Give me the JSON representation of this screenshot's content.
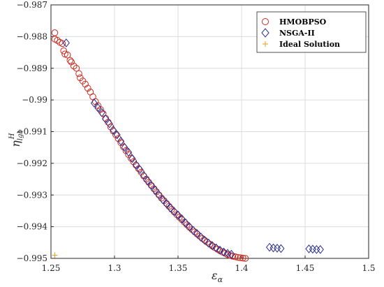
{
  "chart_data": {
    "type": "scatter",
    "xlabel": "ε",
    "xlabel_sub": "α",
    "ylabel": "η",
    "ylabel_sup": "H",
    "ylabel_sub": "lgb",
    "xlim": [
      1.25,
      1.5
    ],
    "ylim": [
      -0.995,
      -0.987
    ],
    "xticks": [
      1.25,
      1.3,
      1.35,
      1.4,
      1.45,
      1.5
    ],
    "xtick_labels": [
      "1.25",
      "1.3",
      "1.35",
      "1.4",
      "1.45",
      "1.5"
    ],
    "yticks": [
      -0.987,
      -0.988,
      -0.989,
      -0.99,
      -0.991,
      -0.992,
      -0.993,
      -0.994,
      -0.995
    ],
    "ytick_labels": [
      "−0.987",
      "−0.988",
      "−0.989",
      "−0.99",
      "−0.991",
      "−0.992",
      "−0.993",
      "−0.994",
      "−0.995"
    ],
    "grid": true,
    "legend_position": "top-right",
    "series": [
      {
        "name": "HMOBPSO",
        "marker": "circle",
        "color": "#cc2a1f",
        "points": [
          [
            1.253,
            -0.98788
          ],
          [
            1.253,
            -0.98808
          ],
          [
            1.255,
            -0.98812
          ],
          [
            1.257,
            -0.98818
          ],
          [
            1.259,
            -0.98822
          ],
          [
            1.26,
            -0.98845
          ],
          [
            1.261,
            -0.98855
          ],
          [
            1.263,
            -0.98858
          ],
          [
            1.265,
            -0.98875
          ],
          [
            1.266,
            -0.9888
          ],
          [
            1.268,
            -0.98893
          ],
          [
            1.27,
            -0.989
          ],
          [
            1.272,
            -0.98917
          ],
          [
            1.273,
            -0.9893
          ],
          [
            1.275,
            -0.9894
          ],
          [
            1.277,
            -0.9895
          ],
          [
            1.279,
            -0.98963
          ],
          [
            1.281,
            -0.98975
          ],
          [
            1.283,
            -0.9899
          ],
          [
            1.285,
            -0.99005
          ],
          [
            1.287,
            -0.99018
          ],
          [
            1.289,
            -0.9903
          ],
          [
            1.291,
            -0.99043
          ],
          [
            1.293,
            -0.99058
          ],
          [
            1.295,
            -0.9907
          ],
          [
            1.297,
            -0.99085
          ],
          [
            1.299,
            -0.99098
          ],
          [
            1.301,
            -0.9911
          ],
          [
            1.303,
            -0.99122
          ],
          [
            1.305,
            -0.99135
          ],
          [
            1.307,
            -0.99148
          ],
          [
            1.309,
            -0.9916
          ],
          [
            1.311,
            -0.99172
          ],
          [
            1.313,
            -0.99184
          ],
          [
            1.315,
            -0.99195
          ],
          [
            1.317,
            -0.99206
          ],
          [
            1.319,
            -0.99217
          ],
          [
            1.321,
            -0.99228
          ],
          [
            1.323,
            -0.9924
          ],
          [
            1.325,
            -0.9925
          ],
          [
            1.327,
            -0.9926
          ],
          [
            1.329,
            -0.9927
          ],
          [
            1.331,
            -0.9928
          ],
          [
            1.333,
            -0.9929
          ],
          [
            1.335,
            -0.993
          ],
          [
            1.337,
            -0.9931
          ],
          [
            1.339,
            -0.99318
          ],
          [
            1.341,
            -0.99327
          ],
          [
            1.343,
            -0.99336
          ],
          [
            1.345,
            -0.99345
          ],
          [
            1.347,
            -0.99354
          ],
          [
            1.349,
            -0.99362
          ],
          [
            1.351,
            -0.9937
          ],
          [
            1.353,
            -0.99378
          ],
          [
            1.355,
            -0.99386
          ],
          [
            1.357,
            -0.99394
          ],
          [
            1.359,
            -0.99402
          ],
          [
            1.361,
            -0.99409
          ],
          [
            1.363,
            -0.99416
          ],
          [
            1.365,
            -0.99423
          ],
          [
            1.367,
            -0.9943
          ],
          [
            1.369,
            -0.99437
          ],
          [
            1.371,
            -0.99443
          ],
          [
            1.373,
            -0.99449
          ],
          [
            1.375,
            -0.99455
          ],
          [
            1.377,
            -0.99461
          ],
          [
            1.379,
            -0.99466
          ],
          [
            1.381,
            -0.99471
          ],
          [
            1.383,
            -0.99476
          ],
          [
            1.385,
            -0.9948
          ],
          [
            1.387,
            -0.99484
          ],
          [
            1.389,
            -0.99488
          ],
          [
            1.391,
            -0.99491
          ],
          [
            1.393,
            -0.99493
          ],
          [
            1.395,
            -0.99495
          ],
          [
            1.397,
            -0.99497
          ],
          [
            1.399,
            -0.99498
          ],
          [
            1.401,
            -0.99499
          ],
          [
            1.403,
            -0.995
          ]
        ]
      },
      {
        "name": "NSGA-II",
        "marker": "diamond",
        "color": "#2b2f8f",
        "points": [
          [
            1.262,
            -0.9882
          ],
          [
            1.284,
            -0.9901
          ],
          [
            1.287,
            -0.99025
          ],
          [
            1.29,
            -0.9904
          ],
          [
            1.293,
            -0.9906
          ],
          [
            1.296,
            -0.99075
          ],
          [
            1.299,
            -0.99095
          ],
          [
            1.302,
            -0.9911
          ],
          [
            1.305,
            -0.9913
          ],
          [
            1.308,
            -0.9915
          ],
          [
            1.311,
            -0.99165
          ],
          [
            1.314,
            -0.99185
          ],
          [
            1.317,
            -0.99205
          ],
          [
            1.32,
            -0.9922
          ],
          [
            1.323,
            -0.99238
          ],
          [
            1.326,
            -0.99255
          ],
          [
            1.329,
            -0.9927
          ],
          [
            1.332,
            -0.99285
          ],
          [
            1.335,
            -0.993
          ],
          [
            1.338,
            -0.99315
          ],
          [
            1.341,
            -0.99328
          ],
          [
            1.344,
            -0.99341
          ],
          [
            1.347,
            -0.99352
          ],
          [
            1.35,
            -0.99363
          ],
          [
            1.353,
            -0.99375
          ],
          [
            1.356,
            -0.99388
          ],
          [
            1.359,
            -0.994
          ],
          [
            1.362,
            -0.99412
          ],
          [
            1.365,
            -0.99422
          ],
          [
            1.368,
            -0.99433
          ],
          [
            1.371,
            -0.99443
          ],
          [
            1.374,
            -0.99452
          ],
          [
            1.377,
            -0.9946
          ],
          [
            1.38,
            -0.99467
          ],
          [
            1.383,
            -0.99474
          ],
          [
            1.386,
            -0.9948
          ],
          [
            1.389,
            -0.99484
          ],
          [
            1.392,
            -0.99487
          ],
          [
            1.422,
            -0.99465
          ],
          [
            1.425,
            -0.99467
          ],
          [
            1.428,
            -0.99468
          ],
          [
            1.431,
            -0.99469
          ],
          [
            1.453,
            -0.9947
          ],
          [
            1.456,
            -0.99471
          ],
          [
            1.459,
            -0.99472
          ],
          [
            1.462,
            -0.99472
          ]
        ]
      },
      {
        "name": "Ideal Solution",
        "marker": "plus",
        "color": "#e8a317",
        "points": [
          [
            1.253,
            -0.9949
          ]
        ]
      }
    ]
  }
}
